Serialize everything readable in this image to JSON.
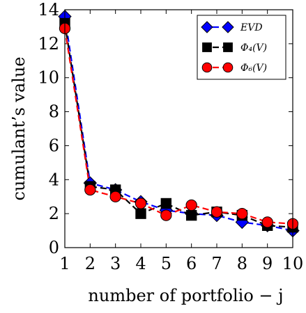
{
  "chart_data": {
    "type": "line",
    "xlabel": "number of portfolio − j",
    "ylabel": "cumulant’s value",
    "x": [
      1,
      2,
      3,
      4,
      5,
      6,
      7,
      8,
      9,
      10
    ],
    "xlim": [
      1,
      10
    ],
    "ylim": [
      0,
      14
    ],
    "xticks": [
      "1",
      "2",
      "3",
      "4",
      "5",
      "6",
      "7",
      "8",
      "9",
      "10"
    ],
    "yticks": [
      "0",
      "2",
      "4",
      "6",
      "8",
      "10",
      "12",
      "14"
    ],
    "grid": false,
    "legend_position": "top-right",
    "series": [
      {
        "name": "EVD",
        "values": [
          13.6,
          3.8,
          3.4,
          2.7,
          2.2,
          2.0,
          1.9,
          1.5,
          1.3,
          1.0
        ],
        "color": "#0000ff",
        "marker": "diamond",
        "linestyle": "dashed"
      },
      {
        "name": "Φ₄(V)",
        "values": [
          13.2,
          3.6,
          3.4,
          2.0,
          2.6,
          1.9,
          2.1,
          1.9,
          1.3,
          1.2
        ],
        "color": "#000000",
        "marker": "square",
        "linestyle": "dashed"
      },
      {
        "name": "Φ₆(V)",
        "values": [
          12.9,
          3.4,
          3.0,
          2.6,
          1.9,
          2.5,
          2.1,
          2.0,
          1.5,
          1.4
        ],
        "color": "#ff0000",
        "marker": "circle",
        "linestyle": "dashed"
      }
    ]
  }
}
